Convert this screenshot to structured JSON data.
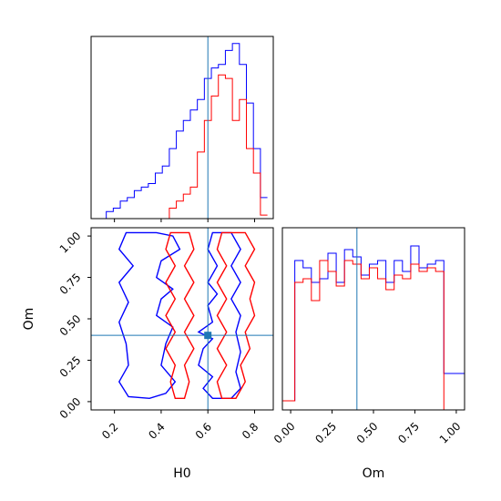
{
  "chart_data": {
    "type": "corner",
    "parameters": [
      "H0",
      "Om"
    ],
    "truth": {
      "H0": 0.6,
      "Om": 0.4
    },
    "colors": {
      "blue": "#0000ff",
      "red": "#ff0000",
      "truth": "#1f77b4"
    },
    "panels": [
      {
        "id": "H0-hist",
        "type": "histogram-step",
        "xlim": [
          0.1,
          0.88
        ],
        "bins_x": [
          0.15,
          0.18,
          0.21,
          0.24,
          0.27,
          0.3,
          0.33,
          0.36,
          0.39,
          0.42,
          0.45,
          0.48,
          0.51,
          0.54,
          0.57,
          0.6,
          0.63,
          0.66,
          0.69,
          0.72,
          0.75,
          0.78,
          0.81,
          0.84,
          0.87
        ],
        "series": [
          {
            "name": "",
            "color": "#0000ff",
            "values": [
              0,
              4,
              6,
              10,
              12,
              16,
              18,
              20,
              26,
              30,
              40,
              50,
              56,
              62,
              68,
              80,
              86,
              88,
              96,
              100,
              88,
              66,
              40,
              12
            ]
          },
          {
            "name": "",
            "color": "#ff0000",
            "values": [
              0,
              0,
              0,
              0,
              0,
              0,
              0,
              0,
              0,
              0,
              6,
              10,
              14,
              18,
              38,
              56,
              70,
              82,
              80,
              56,
              68,
              40,
              26,
              2
            ]
          }
        ]
      },
      {
        "id": "H0-Om-contour",
        "type": "contour",
        "xlim": [
          0.1,
          0.88
        ],
        "ylim": [
          -0.05,
          1.05
        ],
        "xticks": [
          "0.2",
          "0.4",
          "0.6",
          "0.8"
        ],
        "yticks": [
          "0.00",
          "0.25",
          "0.50",
          "0.75",
          "1.00"
        ],
        "xlabel": "H0",
        "ylabel": "Om",
        "series": [
          {
            "name": "",
            "color": "#0000ff",
            "contours": [
              [
                [
                  0.25,
                  1.02
                ],
                [
                  0.38,
                  1.02
                ],
                [
                  0.45,
                  1.0
                ],
                [
                  0.48,
                  0.92
                ],
                [
                  0.4,
                  0.85
                ],
                [
                  0.38,
                  0.75
                ],
                [
                  0.45,
                  0.68
                ],
                [
                  0.4,
                  0.62
                ],
                [
                  0.38,
                  0.52
                ],
                [
                  0.45,
                  0.45
                ],
                [
                  0.42,
                  0.35
                ],
                [
                  0.4,
                  0.22
                ],
                [
                  0.46,
                  0.12
                ],
                [
                  0.42,
                  0.05
                ],
                [
                  0.35,
                  0.02
                ],
                [
                  0.26,
                  0.03
                ],
                [
                  0.22,
                  0.12
                ],
                [
                  0.26,
                  0.22
                ],
                [
                  0.25,
                  0.35
                ],
                [
                  0.22,
                  0.48
                ],
                [
                  0.26,
                  0.6
                ],
                [
                  0.22,
                  0.72
                ],
                [
                  0.28,
                  0.82
                ],
                [
                  0.22,
                  0.92
                ],
                [
                  0.25,
                  1.02
                ]
              ],
              [
                [
                  0.62,
                  1.02
                ],
                [
                  0.7,
                  1.02
                ],
                [
                  0.74,
                  0.92
                ],
                [
                  0.7,
                  0.82
                ],
                [
                  0.74,
                  0.72
                ],
                [
                  0.7,
                  0.62
                ],
                [
                  0.74,
                  0.52
                ],
                [
                  0.72,
                  0.42
                ],
                [
                  0.74,
                  0.3
                ],
                [
                  0.72,
                  0.18
                ],
                [
                  0.74,
                  0.08
                ],
                [
                  0.7,
                  0.02
                ],
                [
                  0.62,
                  0.02
                ],
                [
                  0.58,
                  0.08
                ],
                [
                  0.62,
                  0.15
                ],
                [
                  0.56,
                  0.22
                ],
                [
                  0.58,
                  0.32
                ],
                [
                  0.62,
                  0.38
                ],
                [
                  0.56,
                  0.42
                ],
                [
                  0.62,
                  0.48
                ],
                [
                  0.6,
                  0.58
                ],
                [
                  0.64,
                  0.65
                ],
                [
                  0.6,
                  0.72
                ],
                [
                  0.64,
                  0.82
                ],
                [
                  0.6,
                  0.92
                ],
                [
                  0.62,
                  1.02
                ]
              ]
            ]
          },
          {
            "name": "",
            "color": "#ff0000",
            "contours": [
              [
                [
                  0.44,
                  1.02
                ],
                [
                  0.52,
                  1.02
                ],
                [
                  0.54,
                  0.92
                ],
                [
                  0.5,
                  0.82
                ],
                [
                  0.54,
                  0.72
                ],
                [
                  0.5,
                  0.62
                ],
                [
                  0.54,
                  0.52
                ],
                [
                  0.5,
                  0.42
                ],
                [
                  0.54,
                  0.32
                ],
                [
                  0.5,
                  0.22
                ],
                [
                  0.52,
                  0.12
                ],
                [
                  0.5,
                  0.02
                ],
                [
                  0.46,
                  0.02
                ],
                [
                  0.44,
                  0.12
                ],
                [
                  0.46,
                  0.22
                ],
                [
                  0.42,
                  0.32
                ],
                [
                  0.46,
                  0.42
                ],
                [
                  0.42,
                  0.52
                ],
                [
                  0.46,
                  0.62
                ],
                [
                  0.42,
                  0.72
                ],
                [
                  0.46,
                  0.82
                ],
                [
                  0.42,
                  0.92
                ],
                [
                  0.44,
                  1.02
                ]
              ],
              [
                [
                  0.66,
                  1.02
                ],
                [
                  0.76,
                  1.02
                ],
                [
                  0.8,
                  0.92
                ],
                [
                  0.76,
                  0.82
                ],
                [
                  0.8,
                  0.72
                ],
                [
                  0.78,
                  0.62
                ],
                [
                  0.8,
                  0.52
                ],
                [
                  0.76,
                  0.42
                ],
                [
                  0.78,
                  0.32
                ],
                [
                  0.74,
                  0.22
                ],
                [
                  0.76,
                  0.12
                ],
                [
                  0.72,
                  0.02
                ],
                [
                  0.66,
                  0.02
                ],
                [
                  0.64,
                  0.12
                ],
                [
                  0.68,
                  0.22
                ],
                [
                  0.64,
                  0.32
                ],
                [
                  0.68,
                  0.42
                ],
                [
                  0.64,
                  0.52
                ],
                [
                  0.68,
                  0.62
                ],
                [
                  0.64,
                  0.72
                ],
                [
                  0.68,
                  0.82
                ],
                [
                  0.64,
                  0.92
                ],
                [
                  0.66,
                  1.02
                ]
              ]
            ]
          }
        ]
      },
      {
        "id": "Om-hist",
        "type": "histogram-step",
        "xlim": [
          -0.05,
          1.05
        ],
        "xticks": [
          "0.00",
          "0.25",
          "0.50",
          "0.75",
          "1.00"
        ],
        "xlabel": "Om",
        "bins_x": [
          0.0,
          0.05,
          0.1,
          0.15,
          0.2,
          0.25,
          0.3,
          0.35,
          0.4,
          0.45,
          0.5,
          0.55,
          0.6,
          0.65,
          0.7,
          0.75,
          0.8,
          0.85,
          0.9,
          0.95,
          1.0
        ],
        "series": [
          {
            "name": "",
            "color": "#0000ff",
            "values": [
              0.05,
              0.82,
              0.78,
              0.7,
              0.72,
              0.86,
              0.7,
              0.88,
              0.84,
              0.74,
              0.8,
              0.82,
              0.7,
              0.82,
              0.76,
              0.9,
              0.78,
              0.8,
              0.82,
              0.2
            ]
          },
          {
            "name": "",
            "color": "#ff0000",
            "values": [
              0.05,
              0.7,
              0.72,
              0.6,
              0.82,
              0.76,
              0.68,
              0.82,
              0.8,
              0.72,
              0.78,
              0.72,
              0.66,
              0.74,
              0.72,
              0.8,
              0.76,
              0.78,
              0.76,
              0.0
            ]
          }
        ]
      }
    ]
  }
}
